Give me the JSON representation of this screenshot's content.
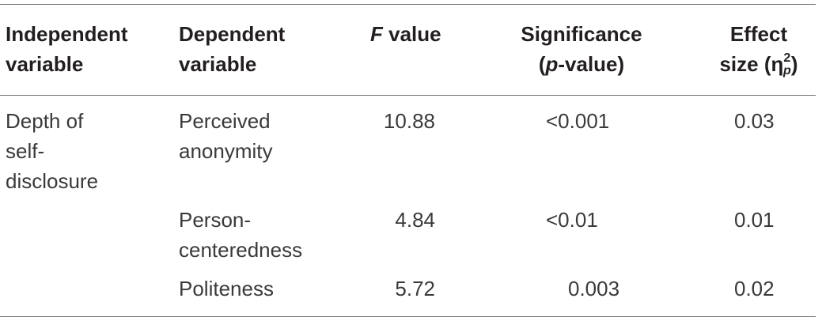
{
  "table": {
    "headers": {
      "independent": [
        "Independent",
        "variable"
      ],
      "dependent": [
        "Dependent",
        "variable"
      ],
      "f_value": {
        "italic": "F",
        "rest": " value"
      },
      "significance": {
        "line1": "Significance",
        "open": "(",
        "italic": "p",
        "rest": "-value)"
      },
      "effect": {
        "line1": "Effect",
        "line2": "size (",
        "symbol": "η",
        "sup": "2",
        "sub": "p",
        "close": ")"
      }
    },
    "group_label": [
      "Depth of",
      "self-",
      "disclosure"
    ],
    "rows": [
      {
        "dependent": [
          "Perceived",
          "anonymity"
        ],
        "f_value": "10.88",
        "significance": "<0.001",
        "effect": "0.03"
      },
      {
        "dependent": [
          "Person-",
          "centeredness"
        ],
        "f_value": "4.84",
        "significance": "<0.01",
        "effect": "0.01"
      },
      {
        "dependent": [
          "Politeness"
        ],
        "f_value": "5.72",
        "significance": "0.003",
        "effect": "0.02"
      }
    ]
  }
}
